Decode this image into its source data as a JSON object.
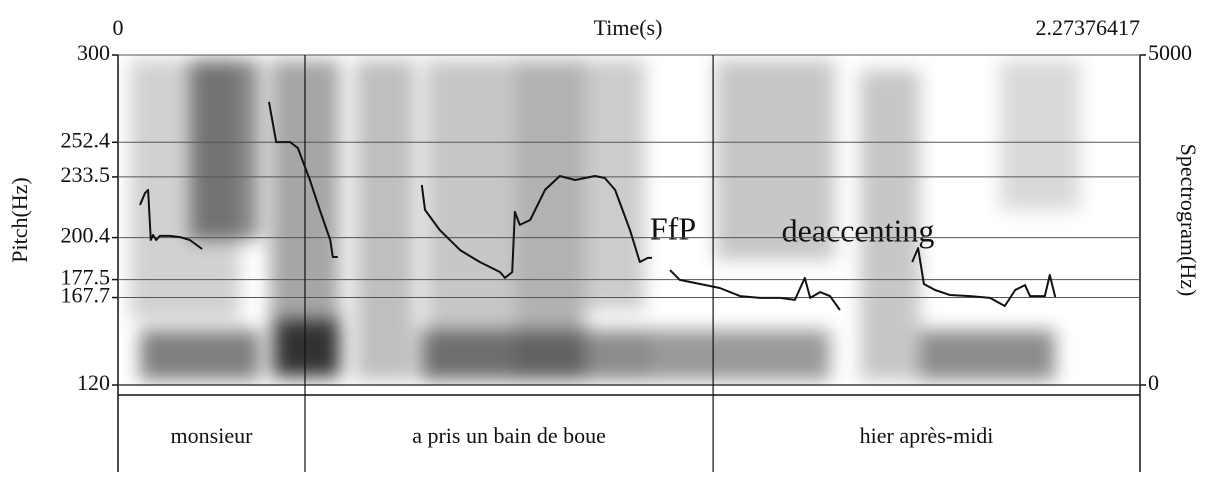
{
  "chart_data": {
    "type": "line",
    "title": "Time(s)",
    "y_label": "Pitch(Hz)",
    "y2_label": "Spectrogram(Hz)",
    "annotations": [
      "FfP",
      "deaccenting"
    ],
    "xlim": [
      0,
      2.27376417
    ],
    "xticks": [
      0,
      2.27376417
    ],
    "ylim": [
      120,
      300
    ],
    "yticks": [
      120,
      167.7,
      177.5,
      200.4,
      233.5,
      252.4,
      300
    ],
    "y2lim": [
      0,
      5000
    ],
    "y2ticks": [
      0,
      5000
    ],
    "grid": true,
    "x": [
      0.049,
      0.06,
      0.067,
      0.073,
      0.078,
      0.085,
      0.093,
      0.116,
      0.138,
      0.16,
      0.187,
      null,
      0.336,
      0.352,
      0.383,
      0.4,
      0.427,
      0.449,
      0.472,
      0.478,
      0.489,
      null,
      0.676,
      0.683,
      0.716,
      0.761,
      0.805,
      0.85,
      0.861,
      0.877,
      0.883,
      0.894,
      0.917,
      0.95,
      0.983,
      1.017,
      1.061,
      1.083,
      1.106,
      1.139,
      1.161,
      1.179,
      1.188,
      null,
      1.228,
      1.25,
      1.295,
      1.339,
      1.384,
      1.428,
      1.473,
      1.506,
      1.528,
      1.54,
      1.562,
      1.584,
      1.606,
      null,
      1.767,
      1.78,
      1.793,
      1.818,
      1.851,
      1.896,
      1.94,
      1.973,
      1.996,
      2.018,
      2.029,
      2.062,
      2.073,
      2.085
    ],
    "series": [
      {
        "name": "Pitch",
        "color": "#111111",
        "values": [
          218.2,
          224.7,
          226.4,
          199.1,
          201.8,
          199.1,
          201.3,
          201.3,
          200.7,
          199.1,
          194.2,
          null,
          274.4,
          252.5,
          252.5,
          249.3,
          231.8,
          215.5,
          199.1,
          189.8,
          189.8,
          null,
          229.1,
          215.5,
          204.5,
          193.6,
          187.1,
          181.6,
          178.4,
          181.6,
          214.4,
          207.3,
          210.0,
          226.4,
          234.0,
          231.8,
          234.0,
          232.9,
          226.4,
          204.5,
          187.1,
          189.3,
          189.3,
          null,
          182.7,
          177.3,
          175.1,
          172.9,
          168.5,
          167.5,
          167.5,
          166.4,
          178.4,
          167.5,
          170.7,
          168.5,
          160.9,
          null,
          187.1,
          194.7,
          175.1,
          171.8,
          169.1,
          168.5,
          167.5,
          163.1,
          171.8,
          174.5,
          168.5,
          168.5,
          180.0,
          168.0
        ]
      }
    ],
    "tiers": [
      {
        "intervals": [
          {
            "start": 0,
            "end": 0.416,
            "text": "monsieur"
          },
          {
            "start": 0.416,
            "end": 1.324,
            "text": "a pris un bain de boue"
          },
          {
            "start": 1.324,
            "end": 2.27376417,
            "text": "hier après-midi"
          }
        ]
      }
    ]
  }
}
